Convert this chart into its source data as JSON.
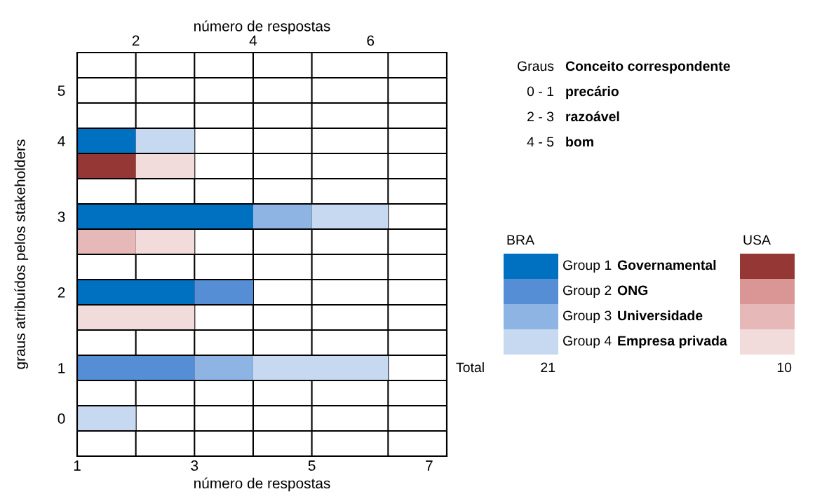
{
  "chart_data": {
    "type": "bar",
    "orientation": "horizontal",
    "stacked": true,
    "categories": [
      null,
      "5",
      null,
      "4",
      null,
      null,
      "3",
      null,
      null,
      "2",
      null,
      null,
      "1",
      null,
      "0",
      null
    ],
    "series": [
      {
        "name": "Group 1",
        "color": "#0070c0",
        "values": [
          null,
          null,
          null,
          2,
          null,
          null,
          4,
          null,
          null,
          3,
          null,
          null,
          null,
          null,
          null,
          null
        ]
      },
      {
        "name": "Group 2",
        "color": "#558ed5",
        "values": [
          null,
          null,
          null,
          null,
          null,
          null,
          null,
          null,
          null,
          1,
          null,
          null,
          3,
          null,
          null,
          null
        ]
      },
      {
        "name": "Group 3",
        "color": "#8eb4e3",
        "values": [
          null,
          null,
          null,
          null,
          null,
          null,
          1,
          null,
          null,
          null,
          null,
          null,
          1,
          null,
          null,
          null
        ]
      },
      {
        "name": "Group 4",
        "color": "#c6d9f1",
        "values": [
          null,
          null,
          null,
          1,
          null,
          null,
          1.3,
          null,
          null,
          null,
          null,
          null,
          2.3,
          null,
          2,
          null
        ]
      },
      {
        "color": "#953735",
        "values": [
          null,
          null,
          null,
          null,
          2,
          null,
          null,
          null,
          null,
          null,
          null,
          null,
          null,
          null,
          null,
          null
        ]
      },
      {
        "color": "#d99694",
        "values": [
          null,
          null,
          null,
          null,
          null,
          null,
          null,
          null,
          null,
          null,
          null,
          null,
          null,
          null,
          null,
          null
        ]
      },
      {
        "color": "#e6b9b8",
        "values": [
          null,
          null,
          null,
          null,
          null,
          null,
          null,
          2,
          null,
          null,
          null,
          null,
          null,
          null,
          null,
          null
        ]
      },
      {
        "color": "#f2dcdb",
        "values": [
          null,
          null,
          null,
          null,
          1,
          null,
          null,
          1,
          null,
          null,
          3,
          null,
          null,
          null,
          null,
          null
        ]
      }
    ],
    "xlim": [
      1,
      7.3
    ],
    "xticks": [
      1,
      3,
      5,
      7
    ],
    "x2lim": [
      1,
      7.3
    ],
    "x2ticks": [
      2,
      4,
      6
    ],
    "xlabel": "número de respostas",
    "x2label": "número de respostas",
    "ylabel": "graus atribuídos pelos stakeholders",
    "grid": true,
    "legend": "right",
    "annotations": [
      "Graus",
      "Conceito correspondente",
      "0 - 1",
      "precário",
      "2 - 3",
      "razoável",
      "4 - 5",
      "bom",
      "BRA",
      "USA",
      "Governamental",
      "ONG",
      "Universidade",
      "Empresa privada",
      "Total",
      "21",
      "10"
    ]
  }
}
